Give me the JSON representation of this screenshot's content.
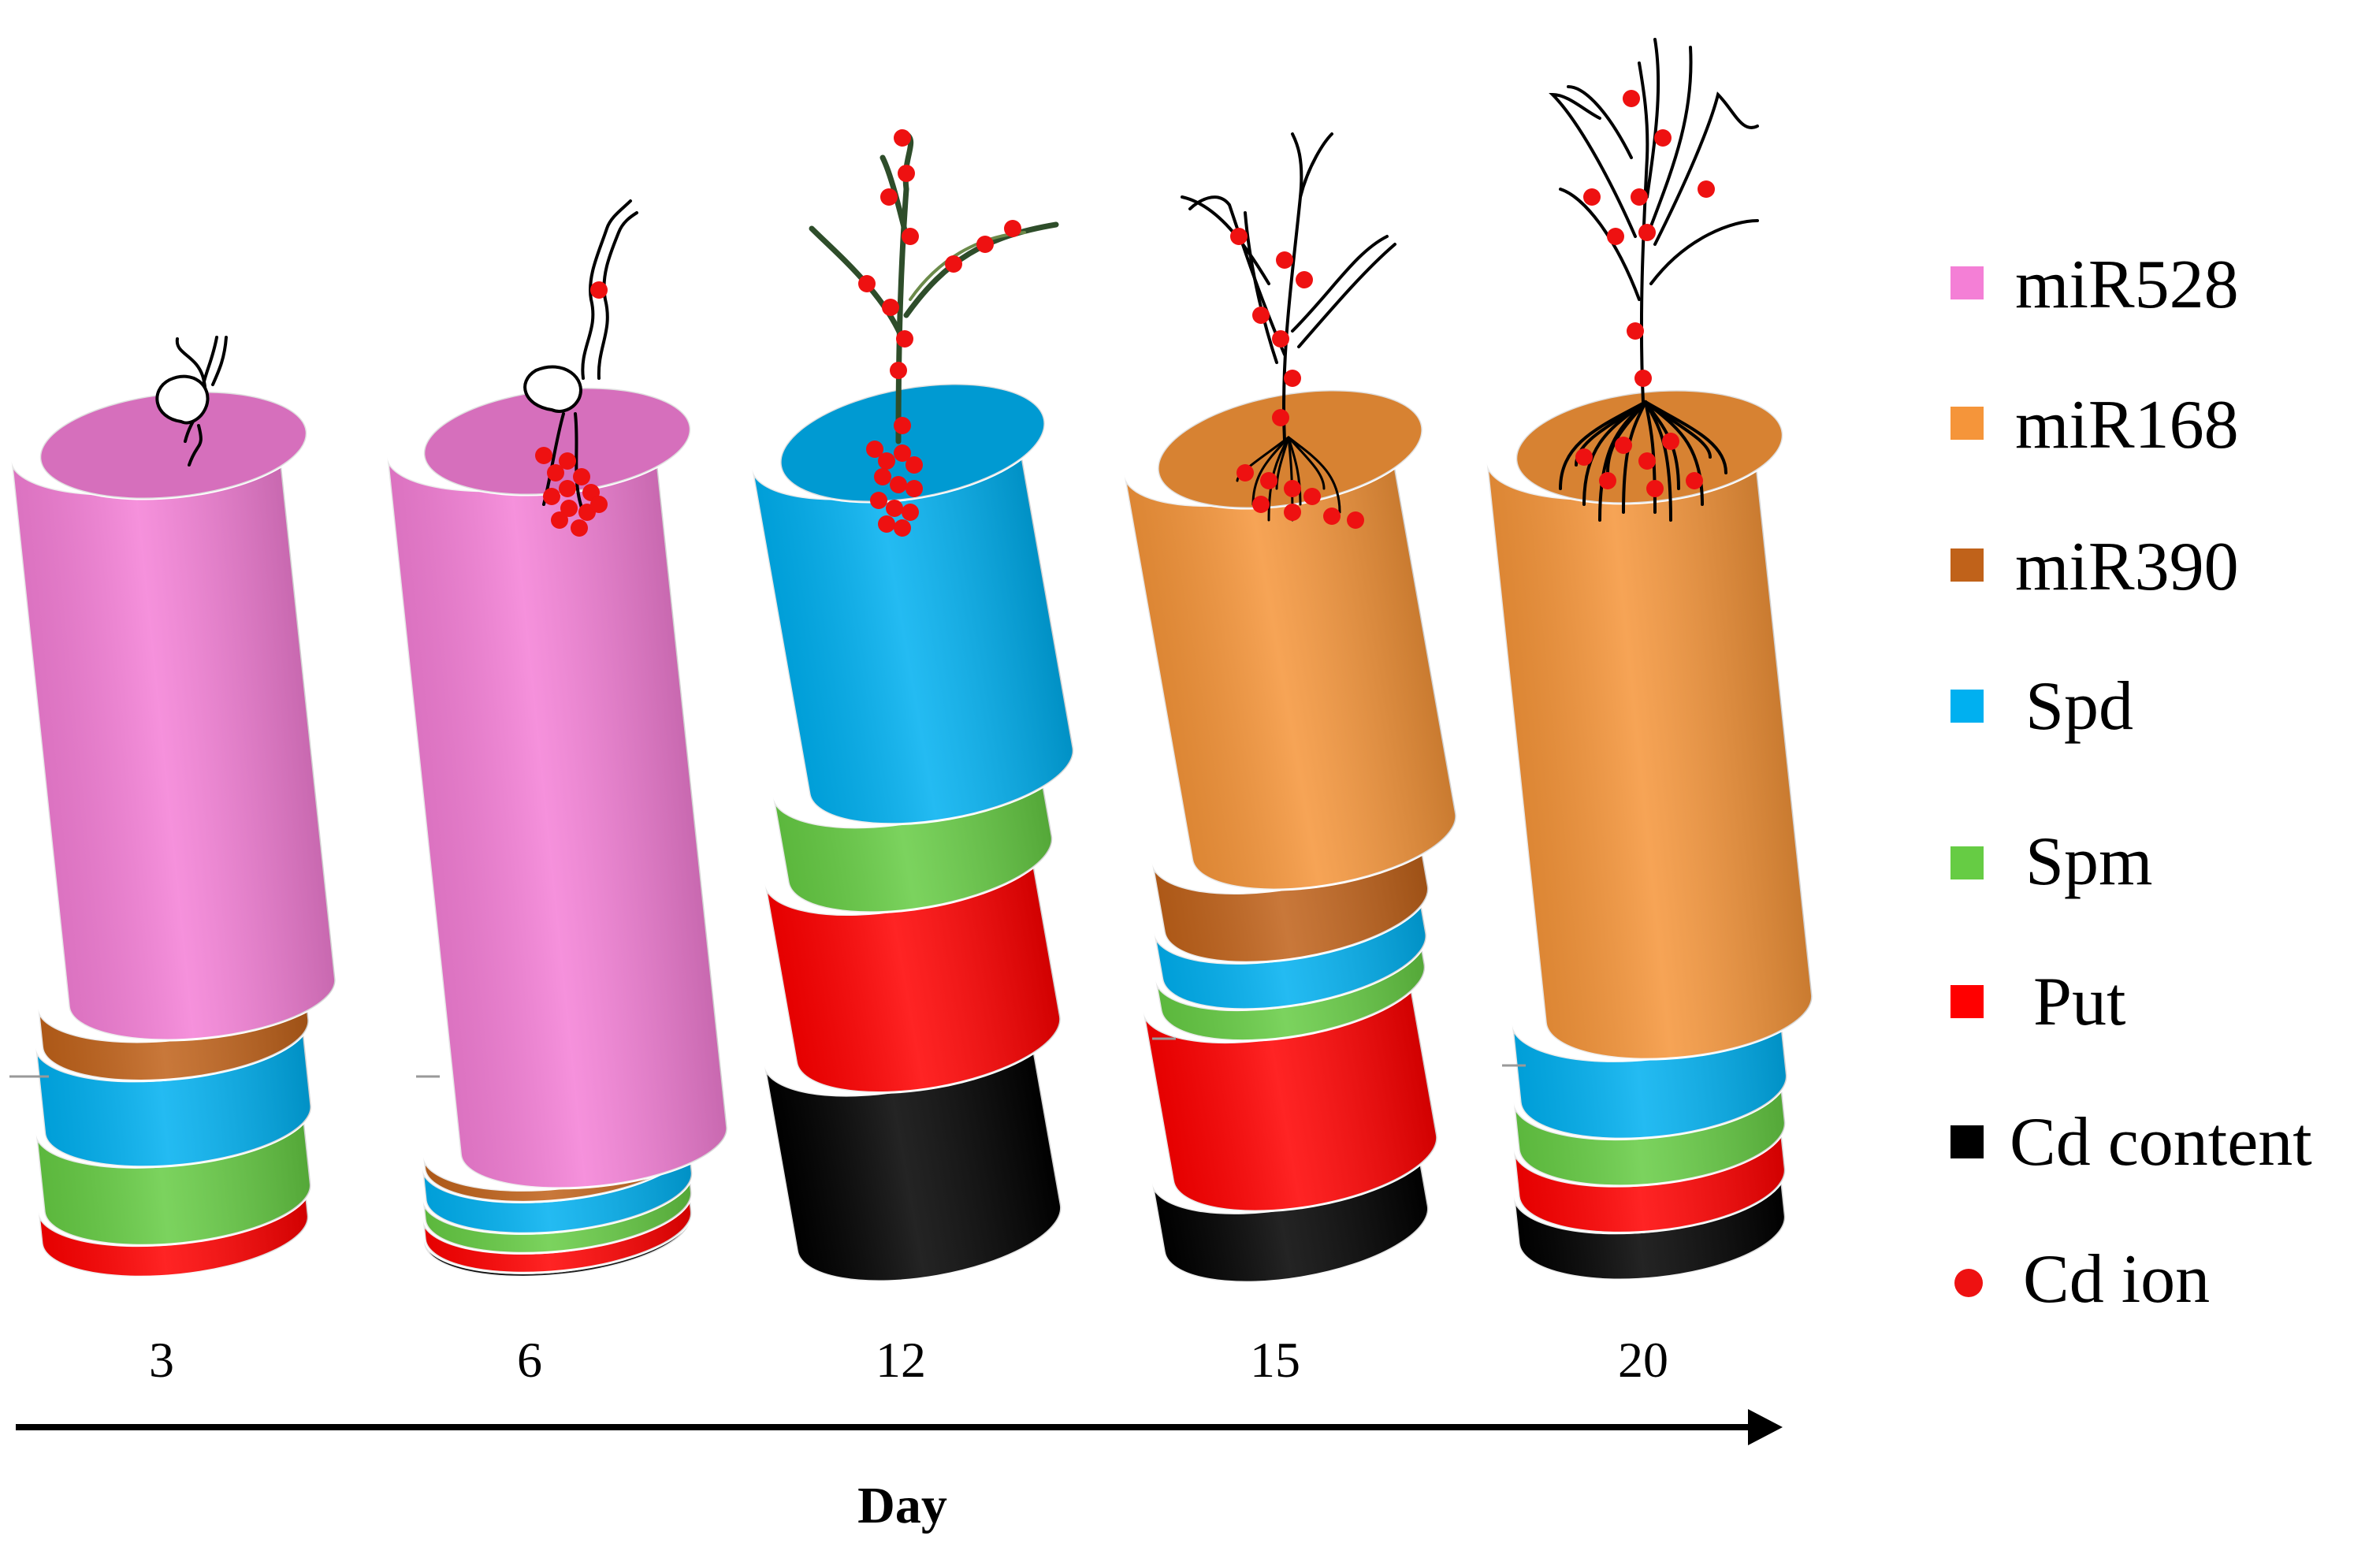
{
  "axis": {
    "title": "Day",
    "ticks": [
      "3",
      "6",
      "12",
      "15",
      "20"
    ]
  },
  "legend": [
    {
      "key": "miR528",
      "label": "miR528",
      "color": "#f47fd6",
      "marker": "square"
    },
    {
      "key": "miR168",
      "label": "miR168",
      "color": "#f5953a",
      "marker": "square"
    },
    {
      "key": "miR390",
      "label": "miR390",
      "color": "#c0621a",
      "marker": "square"
    },
    {
      "key": "Spd",
      "label": "Spd",
      "color": "#00b0f0",
      "marker": "square"
    },
    {
      "key": "Spm",
      "label": "Spm",
      "color": "#66cc44",
      "marker": "square"
    },
    {
      "key": "Put",
      "label": "Put",
      "color": "#ff0000",
      "marker": "square"
    },
    {
      "key": "Cd_content",
      "label": "Cd content",
      "color": "#000000",
      "marker": "square"
    },
    {
      "key": "Cd_ion",
      "label": "Cd ion",
      "color": "#ee1111",
      "marker": "circle"
    }
  ],
  "cylinders": [
    {
      "day": "3",
      "plant_stage": "germinating seed",
      "top_color": "miR528",
      "segments": [
        {
          "component": "Put",
          "share": 4
        },
        {
          "component": "Spm",
          "share": 10
        },
        {
          "component": "Spd",
          "share": 11
        },
        {
          "component": "miR390",
          "share": 5
        },
        {
          "component": "miR528",
          "share": 70
        }
      ]
    },
    {
      "day": "6",
      "plant_stage": "seedling",
      "top_color": "miR528",
      "segments": [
        {
          "component": "Cd_content",
          "share": 0.5
        },
        {
          "component": "Put",
          "share": 2.5
        },
        {
          "component": "Spm",
          "share": 2.5
        },
        {
          "component": "Spd",
          "share": 4
        },
        {
          "component": "miR390",
          "share": 1.5
        },
        {
          "component": "miR528",
          "share": 89
        }
      ]
    },
    {
      "day": "12",
      "plant_stage": "young plant",
      "top_color": "Spd",
      "segments": [
        {
          "component": "Cd_content",
          "share": 24
        },
        {
          "component": "Put",
          "share": 23
        },
        {
          "component": "Spm",
          "share": 11
        },
        {
          "component": "Spd",
          "share": 42
        }
      ]
    },
    {
      "day": "15",
      "plant_stage": "tillering plant",
      "top_color": "miR168",
      "segments": [
        {
          "component": "Cd_content",
          "share": 9
        },
        {
          "component": "Put",
          "share": 22
        },
        {
          "component": "Spm",
          "share": 4
        },
        {
          "component": "Spd",
          "share": 6
        },
        {
          "component": "miR390",
          "share": 9
        },
        {
          "component": "miR168",
          "share": 50
        }
      ]
    },
    {
      "day": "20",
      "plant_stage": "mature plant",
      "top_color": "miR168",
      "segments": [
        {
          "component": "Cd_content",
          "share": 6
        },
        {
          "component": "Put",
          "share": 6
        },
        {
          "component": "Spm",
          "share": 6
        },
        {
          "component": "Spd",
          "share": 10
        },
        {
          "component": "miR168",
          "share": 72
        }
      ]
    }
  ]
}
